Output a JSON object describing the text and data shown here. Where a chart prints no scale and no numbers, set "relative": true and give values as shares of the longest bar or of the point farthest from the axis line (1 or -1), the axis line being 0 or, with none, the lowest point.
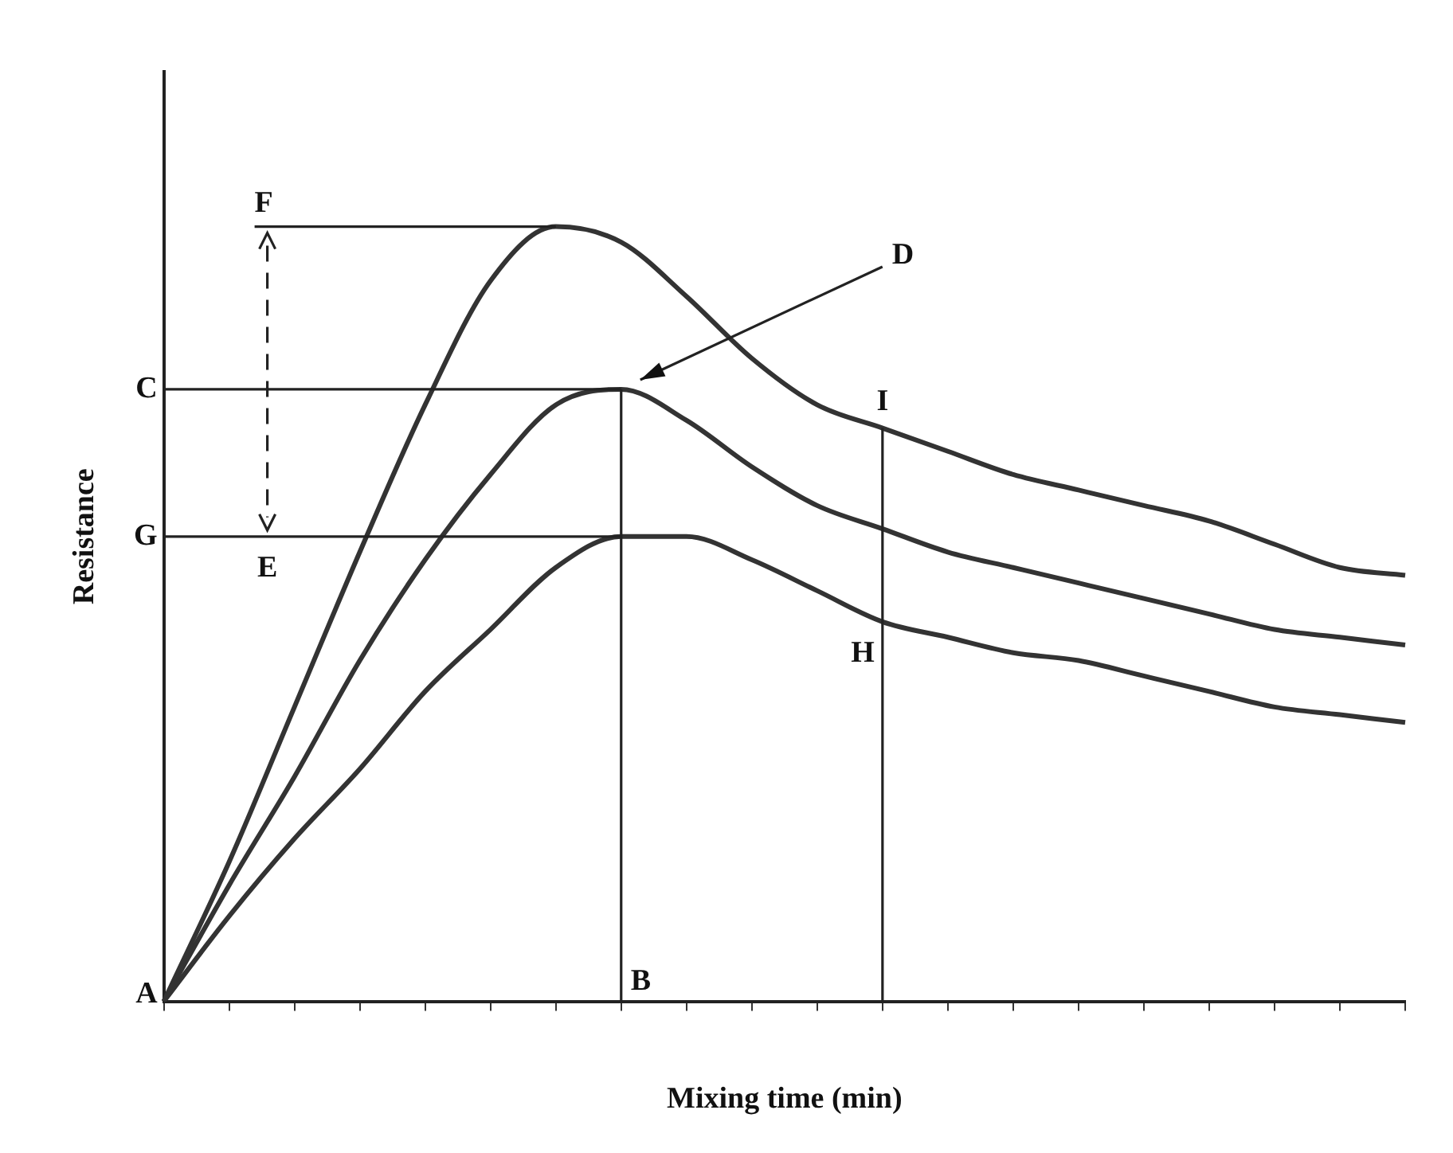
{
  "chart_data": {
    "type": "line",
    "relative": true,
    "xlabel": "Mixing time (min)",
    "ylabel": "Resistance",
    "legend": false,
    "grid": false,
    "marker": "none",
    "categories": [
      null,
      null,
      null,
      null,
      null,
      null,
      null,
      null,
      null,
      null,
      null,
      null,
      null,
      null,
      null,
      null,
      null,
      null,
      null,
      null
    ],
    "series": [
      {
        "color": "#333333",
        "values": [
          0,
          0.18,
          0.38,
          0.58,
          0.77,
          0.93,
          1,
          0.98,
          0.91,
          0.83,
          0.77,
          0.74,
          0.71,
          0.68,
          0.66,
          0.64,
          0.62,
          0.59,
          0.56,
          0.55
        ]
      },
      {
        "color": "#333333",
        "values": [
          0,
          0.15,
          0.29,
          0.44,
          0.57,
          0.68,
          0.77,
          0.79,
          0.75,
          0.69,
          0.64,
          0.61,
          0.58,
          0.56,
          0.54,
          0.52,
          0.5,
          0.48,
          0.47,
          0.46
        ]
      },
      {
        "color": "#333333",
        "values": [
          0,
          0.11,
          0.21,
          0.3,
          0.4,
          0.48,
          0.56,
          0.6,
          0.6,
          0.57,
          0.53,
          0.49,
          0.47,
          0.45,
          0.44,
          0.42,
          0.4,
          0.38,
          0.37,
          0.36
        ]
      }
    ],
    "ref_lines": [
      {
        "axis": "y",
        "value": 1,
        "label": "F"
      },
      {
        "axis": "y",
        "value": 0.79,
        "label": "C"
      },
      {
        "axis": "y",
        "value": 0.6,
        "label": "G"
      }
    ],
    "annotations": [
      "A",
      "B",
      "D",
      "E",
      "H",
      "I"
    ]
  }
}
